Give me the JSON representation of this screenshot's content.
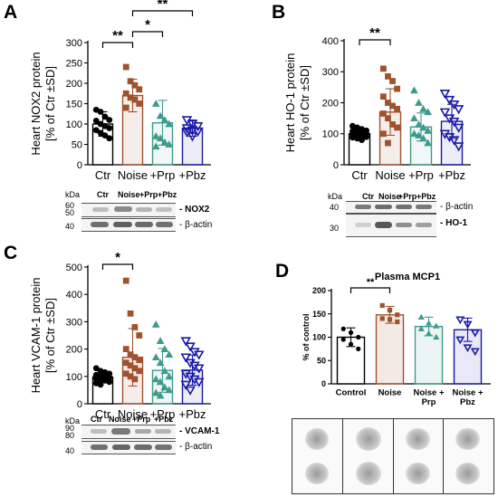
{
  "panels": [
    {
      "letter": "A",
      "ylabel": [
        "Heart NOX2 protein",
        "[% of Ctr ±SD]"
      ],
      "ticks": [
        "0",
        "50",
        "100",
        "150",
        "200",
        "250",
        "300"
      ],
      "categories": [
        "Ctr",
        "Noise",
        "+Prp",
        "+Pbz"
      ],
      "sig": [
        "**",
        "*",
        "**"
      ],
      "blot": {
        "kda_label": "kDa",
        "kda": [
          "60",
          "50",
          "40"
        ],
        "lanes": [
          "Ctr",
          "Noise",
          "+Prp",
          "+Pbz"
        ],
        "rows": [
          "- NOX2",
          "- β-actin"
        ]
      }
    },
    {
      "letter": "B",
      "ylabel": [
        "Heart HO-1 protein",
        "[% of Ctr ±SD]"
      ],
      "ticks": [
        "0",
        "100",
        "200",
        "300",
        "400"
      ],
      "categories": [
        "Ctr",
        "Noise",
        "+Prp",
        "+Pbz"
      ],
      "sig": [
        "**"
      ],
      "blot": {
        "kda_label": "kDa",
        "kda": [
          "40",
          "30"
        ],
        "lanes": [
          "Ctr",
          "Noise",
          "+Prp",
          "+Pbz"
        ],
        "rows": [
          "- β-actin",
          "- HO-1"
        ]
      }
    },
    {
      "letter": "C",
      "ylabel": [
        "Heart VCAM-1 protein",
        "[% of Ctr ±SD]"
      ],
      "ticks": [
        "0",
        "100",
        "200",
        "300",
        "400",
        "500"
      ],
      "categories": [
        "Ctr",
        "Noise",
        "+Prp",
        "+Pbz"
      ],
      "sig": [
        "*"
      ],
      "blot": {
        "kda_label": "kDa",
        "kda": [
          "90",
          "80",
          "40"
        ],
        "lanes": [
          "Ctr",
          "Noise",
          "+Prp",
          "+Pbz"
        ],
        "rows": [
          "- VCAM-1",
          "- β-actin"
        ]
      }
    },
    {
      "letter": "D",
      "title": "Plasma MCP1",
      "ylabel": [
        "% of control"
      ],
      "ticks": [
        "0",
        "50",
        "100",
        "150",
        "200"
      ],
      "categories": [
        "Control",
        "Noise",
        "Noise +\nPrp",
        "Noise +\nPbz"
      ],
      "sig": [
        "**"
      ]
    }
  ],
  "chart_data": [
    {
      "type": "bar",
      "categories": [
        "Ctr",
        "Noise",
        "+Prp",
        "+Pbz"
      ],
      "values": [
        100,
        170,
        103,
        90
      ],
      "errors": [
        30,
        40,
        55,
        20
      ],
      "ylim": [
        0,
        300
      ],
      "ylabel": "Heart NOX2 protein [% of Ctr ±SD]",
      "colors": [
        "#000000",
        "#a0522d",
        "#3e9b8b",
        "#1a1aa8"
      ],
      "points": [
        [
          135,
          130,
          118,
          110,
          108,
          100,
          95,
          90,
          85,
          78,
          72,
          65
        ],
        [
          240,
          205,
          195,
          185,
          175,
          165,
          160,
          150,
          140
        ],
        [
          150,
          120,
          110,
          100,
          70,
          65,
          55,
          50,
          45
        ],
        [
          110,
          100,
          95,
          90,
          85,
          82,
          80,
          70
        ]
      ],
      "significance": [
        {
          "pair": [
            0,
            1
          ],
          "label": "**"
        },
        {
          "pair": [
            1,
            2
          ],
          "label": "*"
        },
        {
          "pair": [
            1,
            3
          ],
          "label": "**"
        }
      ]
    },
    {
      "type": "bar",
      "categories": [
        "Ctr",
        "Noise",
        "+Prp",
        "+Pbz"
      ],
      "values": [
        100,
        170,
        122,
        140
      ],
      "errors": [
        15,
        75,
        45,
        55
      ],
      "ylim": [
        0,
        400
      ],
      "ylabel": "Heart HO-1 protein [% of Ctr ±SD]",
      "colors": [
        "#000000",
        "#a0522d",
        "#3e9b8b",
        "#1a1aa8"
      ],
      "points": [
        [
          125,
          120,
          115,
          110,
          108,
          105,
          102,
          100,
          98,
          95,
          92,
          90,
          88,
          85,
          80
        ],
        [
          310,
          285,
          270,
          245,
          220,
          200,
          190,
          180,
          165,
          150,
          130,
          120,
          100,
          70
        ],
        [
          240,
          200,
          180,
          170,
          150,
          130,
          120,
          110,
          100,
          95,
          85,
          70
        ],
        [
          230,
          210,
          195,
          180,
          170,
          150,
          140,
          120,
          100,
          90,
          80,
          60
        ]
      ],
      "significance": [
        {
          "pair": [
            0,
            1
          ],
          "label": "**"
        }
      ]
    },
    {
      "type": "bar",
      "categories": [
        "Ctr",
        "Noise",
        "+Prp",
        "+Pbz"
      ],
      "values": [
        98,
        170,
        122,
        123
      ],
      "errors": [
        20,
        105,
        80,
        55
      ],
      "ylim": [
        0,
        500
      ],
      "ylabel": "Heart VCAM-1 protein [% of Ctr ±SD]",
      "colors": [
        "#000000",
        "#a0522d",
        "#3e9b8b",
        "#1a1aa8"
      ],
      "points": [
        [
          130,
          120,
          115,
          110,
          105,
          100,
          98,
          95,
          92,
          90,
          85,
          80,
          75,
          70
        ],
        [
          450,
          330,
          280,
          250,
          200,
          180,
          170,
          160,
          150,
          140,
          130,
          120,
          110,
          100,
          90
        ],
        [
          290,
          230,
          200,
          180,
          170,
          150,
          120,
          100,
          90,
          80,
          60,
          50,
          40,
          30
        ],
        [
          230,
          210,
          190,
          180,
          170,
          150,
          140,
          130,
          110,
          100,
          90,
          80,
          70,
          50
        ]
      ],
      "significance": [
        {
          "pair": [
            0,
            1
          ],
          "label": "*"
        }
      ]
    },
    {
      "type": "bar",
      "title": "Plasma MCP1",
      "categories": [
        "Control",
        "Noise",
        "Noise + Prp",
        "Noise + Pbz"
      ],
      "values": [
        100,
        148,
        123,
        116
      ],
      "errors": [
        20,
        18,
        20,
        25
      ],
      "ylim": [
        0,
        200
      ],
      "ylabel": "% of control",
      "colors": [
        "#000000",
        "#a0522d",
        "#3e9b8b",
        "#1a1aa8"
      ],
      "points": [
        [
          118,
          110,
          100,
          95,
          85,
          75
        ],
        [
          168,
          158,
          148,
          140,
          138,
          133
        ],
        [
          143,
          130,
          124,
          118,
          108,
          100
        ],
        [
          138,
          128,
          110,
          95,
          78,
          70
        ]
      ],
      "significance": [
        {
          "pair": [
            0,
            1
          ],
          "label": "**"
        }
      ]
    }
  ]
}
